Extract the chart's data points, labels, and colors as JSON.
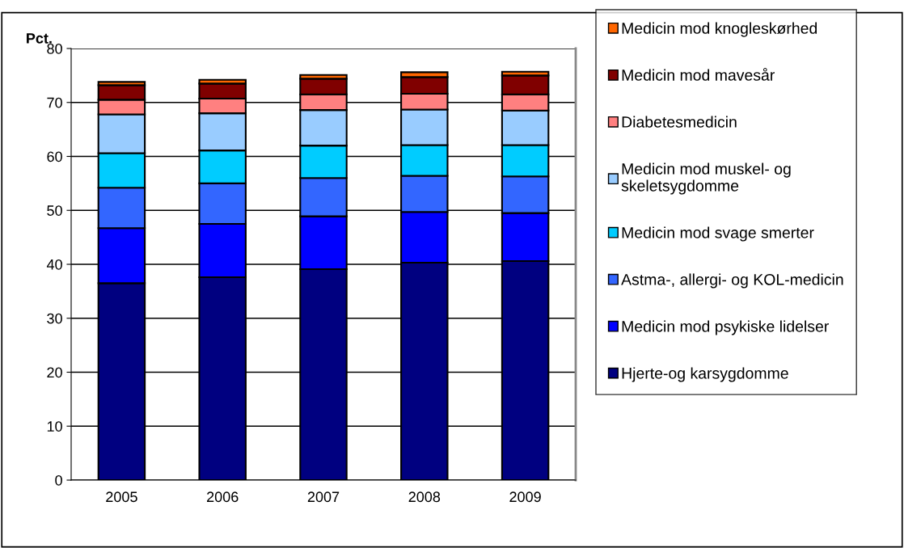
{
  "chart_data": {
    "type": "bar",
    "stacked": true,
    "ylabel": "Pct.",
    "categories": [
      "2005",
      "2006",
      "2007",
      "2008",
      "2009"
    ],
    "ylim": [
      0,
      80
    ],
    "yticks": [
      0,
      10,
      20,
      30,
      40,
      50,
      60,
      70,
      80
    ],
    "grid": "y",
    "legend": "right",
    "series": [
      {
        "name": "Hjerte-og karsygdomme",
        "color": "#000080",
        "values": [
          36.5,
          37.6,
          39.1,
          40.3,
          40.6
        ]
      },
      {
        "name": "Medicin mod psykiske lidelser",
        "color": "#0000ff",
        "values": [
          10.2,
          9.9,
          9.8,
          9.4,
          8.9
        ]
      },
      {
        "name": "Astma-, allergi- og KOL-medicin",
        "color": "#3366ff",
        "values": [
          7.5,
          7.5,
          7.1,
          6.7,
          6.8
        ]
      },
      {
        "name": "Medicin mod svage smerter",
        "color": "#00ccff",
        "values": [
          6.4,
          6.1,
          6.0,
          5.7,
          5.8
        ]
      },
      {
        "name": "Medicin mod muskel- og\nskeletsygdomme",
        "color": "#99ccff",
        "values": [
          7.2,
          6.9,
          6.6,
          6.6,
          6.4
        ]
      },
      {
        "name": "Diabetesmedicin",
        "color": "#ff8080",
        "values": [
          2.7,
          2.7,
          2.9,
          2.9,
          3.0
        ]
      },
      {
        "name": "Medicin mod mavesår",
        "color": "#800000",
        "values": [
          2.7,
          2.8,
          2.9,
          3.1,
          3.5
        ]
      },
      {
        "name": "Medicin mod knogleskørhed",
        "color": "#ff6600",
        "values": [
          0.6,
          0.7,
          0.7,
          0.9,
          0.7
        ]
      }
    ]
  }
}
